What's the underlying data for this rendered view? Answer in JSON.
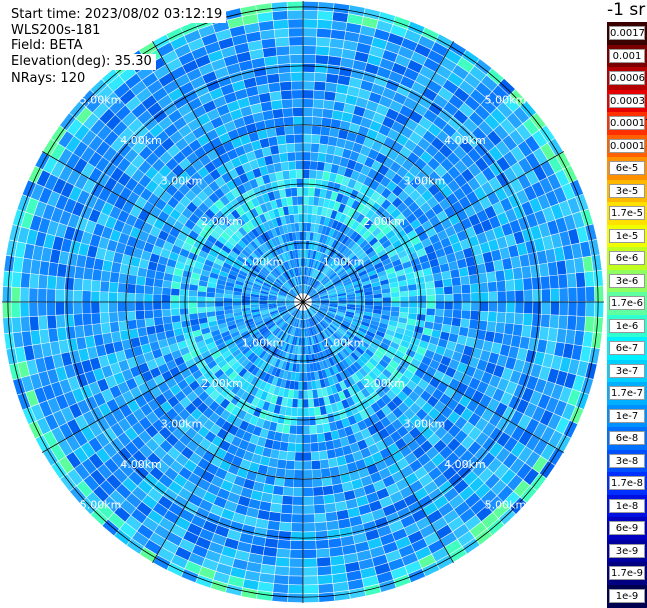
{
  "info": {
    "start_time": "Start time: 2023/08/02 03:12:19",
    "instrument": "WLS200s-181",
    "field": "Field: BETA",
    "elevation": "Elevation(deg): 35.30",
    "nrays": "NRays: 120"
  },
  "ppi": {
    "range_labels": [
      "1.00km",
      "2.00km",
      "3.00km",
      "4.00km",
      "5.00km"
    ],
    "range_rings_km": [
      1,
      2,
      3,
      4,
      5
    ],
    "max_range_km": 5.1,
    "nrays": 120
  },
  "colorbar": {
    "unit": "-1 sr",
    "labels": [
      "0.0017",
      "0.001",
      "0.0006",
      "0.0003",
      "0.00017",
      "0.0001",
      "6e-5",
      "3e-5",
      "1.7e-5",
      "1e-5",
      "6e-6",
      "3e-6",
      "1.7e-6",
      "1e-6",
      "6e-7",
      "3e-7",
      "1.7e-7",
      "1e-7",
      "6e-8",
      "3e-8",
      "1.7e-8",
      "1e-8",
      "6e-9",
      "3e-9",
      "1.7e-9",
      "1e-9"
    ],
    "colors": [
      "#3a0000",
      "#7a0000",
      "#b40000",
      "#e60000",
      "#ff3000",
      "#ff6000",
      "#ff9000",
      "#ffb800",
      "#ffe000",
      "#f0ff00",
      "#c0ff20",
      "#90ff60",
      "#60ffa0",
      "#30ffd0",
      "#00f0ff",
      "#00d0ff",
      "#00b0ff",
      "#0090ff",
      "#0070ff",
      "#0050ff",
      "#0030ff",
      "#0010e0",
      "#0000c0",
      "#0000a0",
      "#000080",
      "#000050"
    ]
  }
}
